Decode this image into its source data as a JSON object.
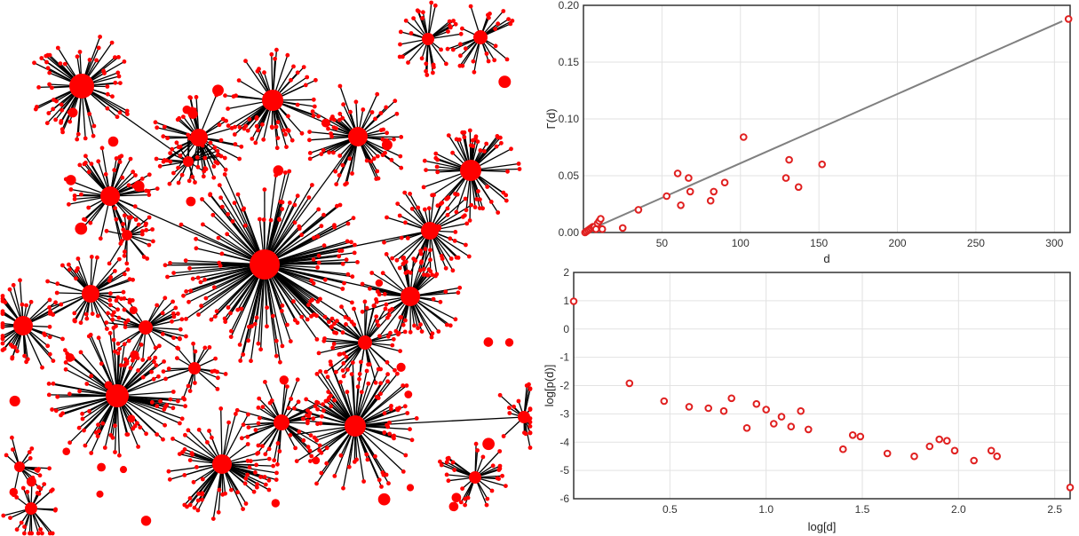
{
  "network": {
    "hub_count": 26,
    "edge_color": "#000000",
    "node_color": "#ff0000"
  },
  "chart_data": [
    {
      "type": "scatter",
      "title": "",
      "xlabel": "d",
      "ylabel": "Γ(d)",
      "xlim": [
        0,
        310
      ],
      "ylim": [
        0,
        0.2
      ],
      "xticks": [
        "50",
        "100",
        "150",
        "200",
        "250",
        "300"
      ],
      "yticks": [
        "0.00",
        "0.05",
        "0.10",
        "0.15",
        "0.20"
      ],
      "grid": true,
      "marker_color": "#e02020",
      "line_color": "#808080",
      "fit_line": {
        "x": [
          0,
          305
        ],
        "y": [
          0,
          0.186
        ]
      },
      "series": [
        {
          "x": [
            1,
            2,
            3,
            4,
            5,
            6,
            7,
            8,
            9,
            10,
            11,
            12,
            25,
            35,
            53,
            60,
            62,
            67,
            68,
            81,
            83,
            90,
            102,
            129,
            131,
            137,
            152,
            309
          ],
          "y": [
            0.0,
            0.001,
            0.002,
            0.003,
            0.004,
            0.005,
            0.005,
            0.003,
            0.008,
            0.01,
            0.012,
            0.003,
            0.004,
            0.02,
            0.032,
            0.052,
            0.024,
            0.048,
            0.036,
            0.028,
            0.036,
            0.044,
            0.084,
            0.048,
            0.064,
            0.04,
            0.06,
            0.188
          ]
        }
      ]
    },
    {
      "type": "scatter",
      "title": "",
      "xlabel": "log[d]",
      "ylabel": "log[p(d)]",
      "xlim": [
        0,
        2.58
      ],
      "ylim": [
        -6,
        2
      ],
      "xticks": [
        "0.5",
        "1.0",
        "1.5",
        "2.0",
        "2.5"
      ],
      "yticks": [
        "2",
        "1",
        "0",
        "-1",
        "-2",
        "-3",
        "-4",
        "-5",
        "-6"
      ],
      "grid": true,
      "marker_color": "#e02020",
      "series": [
        {
          "x": [
            0.0,
            0.29,
            0.47,
            0.6,
            0.7,
            0.78,
            0.82,
            0.9,
            0.95,
            1.0,
            1.04,
            1.08,
            1.13,
            1.18,
            1.22,
            1.4,
            1.45,
            1.49,
            1.63,
            1.77,
            1.85,
            1.9,
            1.94,
            1.98,
            2.08,
            2.17,
            2.2,
            2.58
          ],
          "y": [
            0.98,
            -1.92,
            -2.55,
            -2.75,
            -2.8,
            -2.9,
            -2.45,
            -3.5,
            -2.65,
            -2.85,
            -3.35,
            -3.1,
            -3.45,
            -2.9,
            -3.55,
            -4.25,
            -3.75,
            -3.8,
            -4.4,
            -4.5,
            -4.15,
            -3.9,
            -3.95,
            -4.3,
            -4.65,
            -4.3,
            -4.5,
            -5.6
          ]
        }
      ]
    }
  ]
}
